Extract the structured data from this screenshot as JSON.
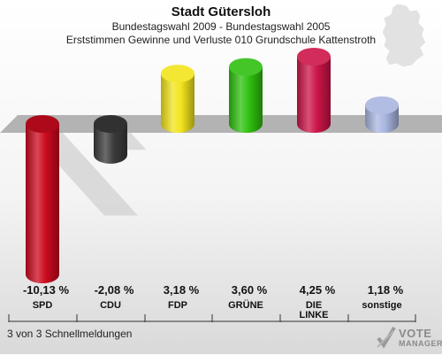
{
  "header": {
    "title": "Stadt Gütersloh",
    "subtitle1": "Bundestagswahl 2009 - Bundestagswahl 2005",
    "subtitle2": "Erststimmen Gewinne und Verluste 010 Grundschule Kattenstroth"
  },
  "footer": {
    "status": "3 von 3 Schnellmeldungen"
  },
  "logo": {
    "line1": "VOTE",
    "line2": "MANAGER"
  },
  "chart_data": {
    "type": "bar",
    "title": "Stadt Gütersloh",
    "categories": [
      "SPD",
      "CDU",
      "FDP",
      "GRÜNE",
      "DIE LINKE",
      "sonstige"
    ],
    "category_lines": [
      [
        "SPD"
      ],
      [
        "CDU"
      ],
      [
        "FDP"
      ],
      [
        "GRÜNE"
      ],
      [
        "DIE",
        "LINKE"
      ],
      [
        "sonstige"
      ]
    ],
    "values": [
      -10.13,
      -2.08,
      3.18,
      3.6,
      4.25,
      1.18
    ],
    "value_labels": [
      "-10,13 %",
      "-2,08 %",
      "3,18 %",
      "3,60 %",
      "4,25 %",
      "1,18 %"
    ],
    "colors": [
      "#cc0a1e",
      "#3a3a3a",
      "#f2e41c",
      "#2fc010",
      "#cc1448",
      "#a9b6e0"
    ],
    "ylim": [
      -10.13,
      4.25
    ],
    "grid": false,
    "legend": "none"
  }
}
